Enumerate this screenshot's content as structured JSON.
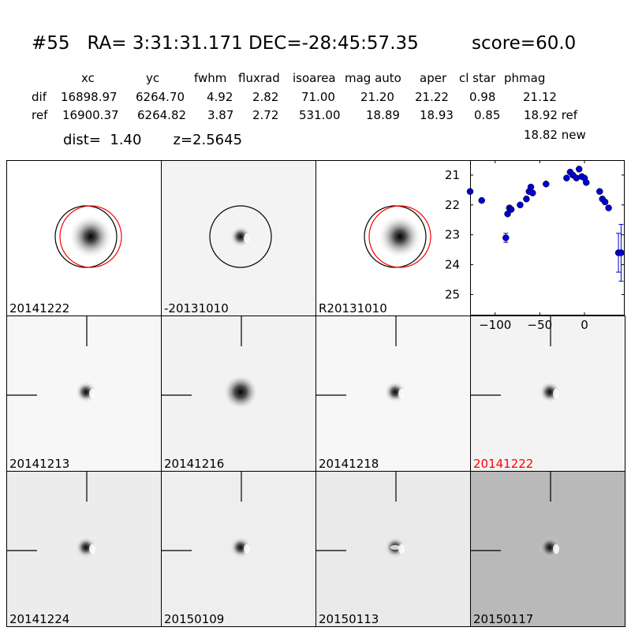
{
  "header": {
    "title": "#55   RA= 3:31:31.171 DEC=-28:45:57.35",
    "score": "score=60.0",
    "columns": [
      "xc",
      "yc",
      "fwhm",
      "fluxrad",
      "isoarea",
      "mag auto",
      "aper",
      "cl star",
      "phmag"
    ],
    "rows": [
      {
        "label": "dif",
        "values": [
          "16898.97",
          "6264.70",
          "4.92",
          "2.82",
          "71.00",
          "21.20",
          "21.22",
          "0.98",
          "21.12"
        ]
      },
      {
        "label": "ref",
        "values": [
          "16900.37",
          "6264.82",
          "3.87",
          "2.72",
          "531.00",
          "18.89",
          "18.93",
          "0.85",
          "18.92 ref"
        ]
      }
    ],
    "dist": "dist=  1.40       z=2.5645",
    "new_mag": "18.82 new"
  },
  "stamps": [
    {
      "label": "20141222",
      "label_color": "#000000",
      "bg": "#ffffff",
      "blob": "broad",
      "circles": true,
      "ticks": false
    },
    {
      "label": "-20131010",
      "label_color": "#000000",
      "bg": "#f3f3f3",
      "blob": "dipole",
      "circles": "black",
      "ticks": false
    },
    {
      "label": "R20131010",
      "label_color": "#000000",
      "bg": "#ffffff",
      "blob": "broad",
      "circles": true,
      "ticks": false
    },
    {
      "label": "20141213",
      "label_color": "#000000",
      "bg": "#f7f7f7",
      "blob": "dipole",
      "circles": false,
      "ticks": true
    },
    {
      "label": "20141216",
      "label_color": "#000000",
      "bg": "#f2f2f2",
      "blob": "big",
      "circles": false,
      "ticks": true
    },
    {
      "label": "20141218",
      "label_color": "#000000",
      "bg": "#f7f7f7",
      "blob": "dipole",
      "circles": false,
      "ticks": true
    },
    {
      "label": "20141222",
      "label_color": "#ff0000",
      "bg": "#f3f3f3",
      "blob": "dipole",
      "circles": false,
      "ticks": true
    },
    {
      "label": "20141224",
      "label_color": "#000000",
      "bg": "#ececec",
      "blob": "dipole",
      "circles": false,
      "ticks": true
    },
    {
      "label": "20150109",
      "label_color": "#000000",
      "bg": "#eeeeee",
      "blob": "dipole",
      "circles": false,
      "ticks": true
    },
    {
      "label": "20150113",
      "label_color": "#000000",
      "bg": "#eaeaea",
      "blob": "ring",
      "circles": false,
      "ticks": true
    },
    {
      "label": "20150117",
      "label_color": "#000000",
      "bg": "#b9b9b9",
      "blob": "dipole",
      "circles": false,
      "ticks": true
    }
  ],
  "chart_data": {
    "type": "scatter",
    "xlim": [
      -128,
      45
    ],
    "ylim": [
      25.7,
      20.5
    ],
    "x_ticks": [
      -100,
      -50,
      0
    ],
    "x_tick_labels": [
      "−100",
      "−50",
      "0"
    ],
    "y_ticks": [
      21,
      22,
      23,
      24,
      25
    ],
    "y_tick_labels": [
      "21",
      "22",
      "23",
      "24",
      "25"
    ],
    "marker_color": "#0000cc",
    "points": [
      {
        "x": -128,
        "y": 21.55,
        "err": 0
      },
      {
        "x": -115,
        "y": 21.85,
        "err": 0
      },
      {
        "x": -88,
        "y": 23.1,
        "err": 0.15
      },
      {
        "x": -86,
        "y": 22.3,
        "err": 0
      },
      {
        "x": -84,
        "y": 22.1,
        "err": 0
      },
      {
        "x": -82,
        "y": 22.15,
        "err": 0
      },
      {
        "x": -72,
        "y": 22.0,
        "err": 0
      },
      {
        "x": -65,
        "y": 21.8,
        "err": 0
      },
      {
        "x": -62,
        "y": 21.55,
        "err": 0
      },
      {
        "x": -60,
        "y": 21.4,
        "err": 0
      },
      {
        "x": -58,
        "y": 21.6,
        "err": 0
      },
      {
        "x": -43,
        "y": 21.3,
        "err": 0
      },
      {
        "x": -20,
        "y": 21.1,
        "err": 0
      },
      {
        "x": -16,
        "y": 20.9,
        "err": 0
      },
      {
        "x": -13,
        "y": 21.0,
        "err": 0
      },
      {
        "x": -9,
        "y": 21.1,
        "err": 0
      },
      {
        "x": -6,
        "y": 20.8,
        "err": 0
      },
      {
        "x": -3,
        "y": 21.05,
        "err": 0
      },
      {
        "x": 0,
        "y": 21.1,
        "err": 0
      },
      {
        "x": 2,
        "y": 21.25,
        "err": 0
      },
      {
        "x": 17,
        "y": 21.55,
        "err": 0
      },
      {
        "x": 20,
        "y": 21.8,
        "err": 0
      },
      {
        "x": 23,
        "y": 21.9,
        "err": 0
      },
      {
        "x": 27,
        "y": 22.1,
        "err": 0
      },
      {
        "x": 38,
        "y": 23.6,
        "err": 0.65
      },
      {
        "x": 41,
        "y": 23.6,
        "err": 0.95
      }
    ]
  }
}
